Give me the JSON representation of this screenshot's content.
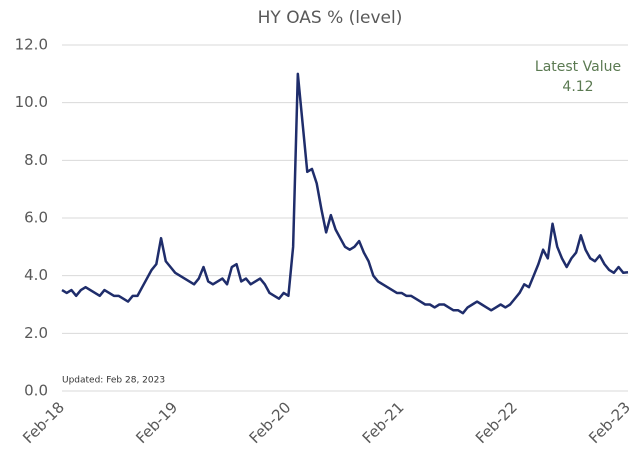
{
  "chart_data": {
    "type": "line",
    "title": "HY OAS % (level)",
    "annotations": {
      "latest_label": "Latest Value",
      "latest_value": "4.12",
      "updated": "Updated: Feb 28, 2023"
    },
    "categories": [
      "Feb-18",
      null,
      null,
      null,
      null,
      null,
      null,
      null,
      null,
      null,
      null,
      null,
      null,
      null,
      null,
      null,
      null,
      null,
      null,
      null,
      null,
      null,
      null,
      null,
      "Feb-19",
      null,
      null,
      null,
      null,
      null,
      null,
      null,
      null,
      null,
      null,
      null,
      null,
      null,
      null,
      null,
      null,
      null,
      null,
      null,
      null,
      null,
      null,
      null,
      "Feb-20",
      null,
      null,
      null,
      null,
      null,
      null,
      null,
      null,
      null,
      null,
      null,
      null,
      null,
      null,
      null,
      null,
      null,
      null,
      null,
      null,
      null,
      null,
      null,
      "Feb-21",
      null,
      null,
      null,
      null,
      null,
      null,
      null,
      null,
      null,
      null,
      null,
      null,
      null,
      null,
      null,
      null,
      null,
      null,
      null,
      null,
      null,
      null,
      null,
      "Feb-22",
      null,
      null,
      null,
      null,
      null,
      null,
      null,
      null,
      null,
      null,
      null,
      null,
      null,
      null,
      null,
      null,
      null,
      null,
      null,
      null,
      null,
      null,
      null,
      "Feb-23"
    ],
    "series": [
      {
        "name": "HY OAS",
        "color": "#1f2d6b",
        "values": [
          3.5,
          3.4,
          3.5,
          3.3,
          3.5,
          3.6,
          3.5,
          3.4,
          3.3,
          3.5,
          3.4,
          3.3,
          3.3,
          3.2,
          3.1,
          3.3,
          3.3,
          3.6,
          3.9,
          4.2,
          4.4,
          5.3,
          4.5,
          4.3,
          4.1,
          4.0,
          3.9,
          3.8,
          3.7,
          3.9,
          4.3,
          3.8,
          3.7,
          3.8,
          3.9,
          3.7,
          4.3,
          4.4,
          3.8,
          3.9,
          3.7,
          3.8,
          3.9,
          3.7,
          3.4,
          3.3,
          3.2,
          3.4,
          3.3,
          5.0,
          11.0,
          9.3,
          7.6,
          7.7,
          7.2,
          6.3,
          5.5,
          6.1,
          5.6,
          5.3,
          5.0,
          4.9,
          5.0,
          5.2,
          4.8,
          4.5,
          4.0,
          3.8,
          3.7,
          3.6,
          3.5,
          3.4,
          3.4,
          3.3,
          3.3,
          3.2,
          3.1,
          3.0,
          3.0,
          2.9,
          3.0,
          3.0,
          2.9,
          2.8,
          2.8,
          2.7,
          2.9,
          3.0,
          3.1,
          3.0,
          2.9,
          2.8,
          2.9,
          3.0,
          2.9,
          3.0,
          3.2,
          3.4,
          3.7,
          3.6,
          4.0,
          4.4,
          4.9,
          4.6,
          5.8,
          5.0,
          4.6,
          4.3,
          4.6,
          4.8,
          5.4,
          4.9,
          4.6,
          4.5,
          4.7,
          4.4,
          4.2,
          4.1,
          4.3,
          4.1,
          4.12
        ]
      }
    ],
    "ylim": [
      0,
      12
    ],
    "yticks": [
      {
        "value": 0,
        "label": "0.0"
      },
      {
        "value": 2,
        "label": "2.0"
      },
      {
        "value": 4,
        "label": "4.0"
      },
      {
        "value": 6,
        "label": "6.0"
      },
      {
        "value": 8,
        "label": "8.0"
      },
      {
        "value": 10,
        "label": "10.0"
      },
      {
        "value": 12,
        "label": "12.0"
      }
    ],
    "grid": true
  }
}
